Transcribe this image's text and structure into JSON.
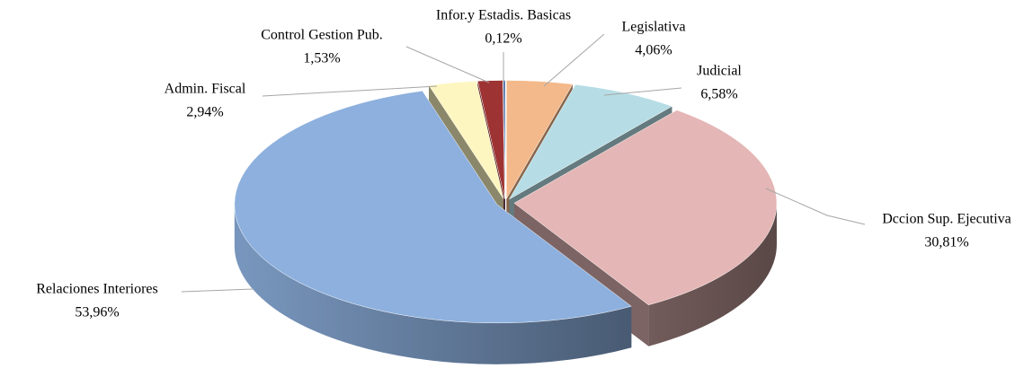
{
  "chart_data": {
    "type": "pie",
    "categories": [
      "Legislativa",
      "Judicial",
      "Dccion Sup. Ejecutiva",
      "Relaciones Interiores",
      "Admin. Fiscal",
      "Control Gestion Pub.",
      "Infor.y Estadis. Basicas"
    ],
    "values": [
      4.06,
      6.58,
      30.81,
      53.96,
      2.94,
      1.53,
      0.12
    ],
    "value_labels": [
      "4,06%",
      "6,58%",
      "30,81%",
      "53,96%",
      "2,94%",
      "1,53%",
      "0,12%"
    ],
    "colors": [
      "#f4b98a",
      "#b6dde5",
      "#e4b6b5",
      "#8db0de",
      "#fdf6c0",
      "#9e3333",
      "#2f5597"
    ]
  }
}
